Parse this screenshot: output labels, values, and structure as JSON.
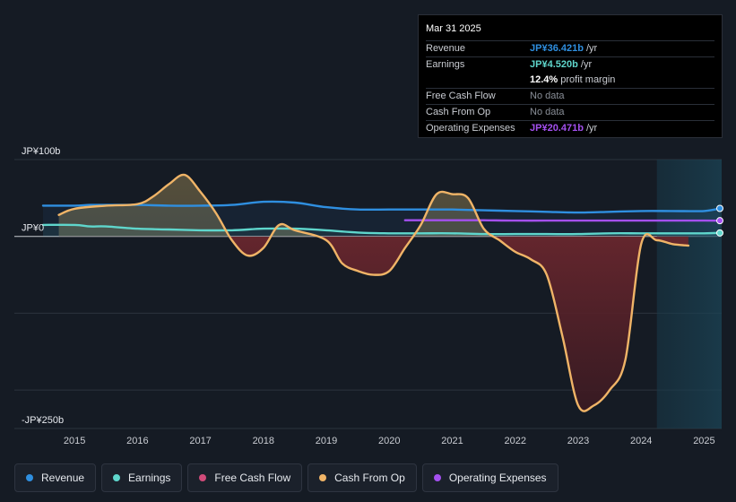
{
  "colors": {
    "revenue": "#2f8fe0",
    "earnings": "#5fd6cc",
    "free_cash_flow": "#d14b7a",
    "cash_from_op": "#f0b467",
    "operating_expenses": "#a450f0"
  },
  "tooltip": {
    "date": "Mar 31 2025",
    "rows": [
      {
        "label": "Revenue",
        "value": "JP¥36.421b",
        "unit": "/yr",
        "color": "#2f8fe0"
      },
      {
        "label": "Earnings",
        "value": "JP¥4.520b",
        "unit": "/yr",
        "color": "#5fd6cc"
      },
      {
        "label": "",
        "value": "12.4%",
        "unit": "profit margin",
        "color": "#ffffff"
      },
      {
        "label": "Free Cash Flow",
        "value": "No data",
        "unit": "",
        "color": "#8a8f98"
      },
      {
        "label": "Cash From Op",
        "value": "No data",
        "unit": "",
        "color": "#8a8f98"
      },
      {
        "label": "Operating Expenses",
        "value": "JP¥20.471b",
        "unit": "/yr",
        "color": "#a450f0"
      }
    ]
  },
  "legend": [
    {
      "label": "Revenue",
      "color": "#2f8fe0"
    },
    {
      "label": "Earnings",
      "color": "#5fd6cc"
    },
    {
      "label": "Free Cash Flow",
      "color": "#d14b7a"
    },
    {
      "label": "Cash From Op",
      "color": "#f0b467"
    },
    {
      "label": "Operating Expenses",
      "color": "#a450f0"
    }
  ],
  "chart_data": {
    "type": "line",
    "title": "",
    "xlabel": "",
    "ylabel": "",
    "y_unit": "JP¥ billions",
    "xlim": [
      2014.5,
      2025.25
    ],
    "ylim": [
      -250,
      100
    ],
    "y_tick_labels": [
      {
        "value": 100,
        "label": "JP¥100b"
      },
      {
        "value": 0,
        "label": "JP¥0"
      },
      {
        "value": -250,
        "label": "-JP¥250b"
      }
    ],
    "x_tick_labels": [
      "2015",
      "2016",
      "2017",
      "2018",
      "2019",
      "2020",
      "2021",
      "2022",
      "2023",
      "2024",
      "2025"
    ],
    "x_ticks": [
      2015,
      2016,
      2017,
      2018,
      2019,
      2020,
      2021,
      2022,
      2023,
      2024,
      2025
    ],
    "forecast_start": 2024.25,
    "series": [
      {
        "name": "Revenue",
        "key": "revenue",
        "x": [
          2014.5,
          2015.0,
          2015.25,
          2015.5,
          2016.0,
          2016.5,
          2017.0,
          2017.5,
          2018.0,
          2018.5,
          2019.0,
          2019.5,
          2020.0,
          2020.5,
          2021.0,
          2021.5,
          2022.0,
          2022.5,
          2023.0,
          2023.5,
          2024.0,
          2024.5,
          2025.0,
          2025.25
        ],
        "values": [
          40,
          40,
          41,
          41,
          41,
          40,
          40,
          41,
          45,
          44,
          38,
          35,
          35,
          35,
          35,
          34,
          33,
          32,
          31,
          32,
          33,
          33,
          33,
          36.4
        ]
      },
      {
        "name": "Earnings",
        "key": "earnings",
        "x": [
          2014.5,
          2015.0,
          2015.25,
          2015.5,
          2016.0,
          2016.5,
          2017.0,
          2017.5,
          2018.0,
          2018.5,
          2019.0,
          2019.5,
          2020.0,
          2020.5,
          2021.0,
          2021.5,
          2022.0,
          2022.5,
          2023.0,
          2023.5,
          2024.0,
          2024.5,
          2025.0,
          2025.25
        ],
        "values": [
          15,
          15,
          13,
          13,
          10,
          9,
          8,
          8,
          10,
          10,
          8,
          5,
          4,
          4,
          4,
          3,
          3,
          3,
          3,
          4,
          4,
          4,
          4,
          4.52
        ]
      },
      {
        "name": "Free Cash Flow",
        "key": "free_cash_flow",
        "x": [],
        "values": []
      },
      {
        "name": "Cash From Op",
        "key": "cash_from_op",
        "x": [
          2014.75,
          2015.0,
          2015.5,
          2016.0,
          2016.25,
          2016.5,
          2016.75,
          2017.0,
          2017.25,
          2017.5,
          2017.75,
          2018.0,
          2018.25,
          2018.5,
          2019.0,
          2019.25,
          2019.5,
          2019.75,
          2020.0,
          2020.25,
          2020.5,
          2020.75,
          2021.0,
          2021.25,
          2021.5,
          2021.75,
          2022.0,
          2022.25,
          2022.5,
          2022.75,
          2023.0,
          2023.25,
          2023.5,
          2023.75,
          2024.0,
          2024.25,
          2024.5,
          2024.75
        ],
        "values": [
          28,
          36,
          40,
          42,
          52,
          68,
          80,
          58,
          30,
          -5,
          -25,
          -15,
          15,
          8,
          -5,
          -35,
          -45,
          -50,
          -45,
          -15,
          15,
          55,
          55,
          50,
          10,
          -5,
          -20,
          -30,
          -50,
          -130,
          -220,
          -220,
          -200,
          -160,
          -10,
          -5,
          -10,
          -12
        ]
      },
      {
        "name": "Operating Expenses",
        "key": "operating_expenses",
        "x": [
          2020.25,
          2020.5,
          2021.0,
          2021.5,
          2022.0,
          2022.5,
          2023.0,
          2023.5,
          2024.0,
          2024.5,
          2025.0,
          2025.25
        ],
        "values": [
          21,
          21,
          21,
          21,
          20.5,
          20.5,
          20.5,
          20.5,
          20.5,
          20.5,
          20.5,
          20.47
        ]
      }
    ]
  }
}
